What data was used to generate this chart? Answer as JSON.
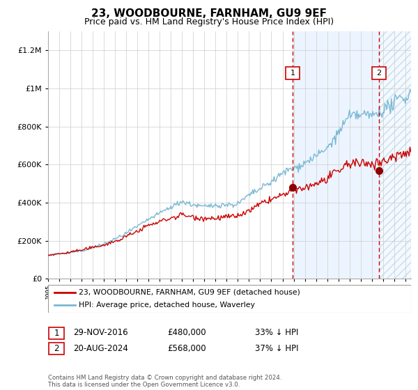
{
  "title": "23, WOODBOURNE, FARNHAM, GU9 9EF",
  "subtitle": "Price paid vs. HM Land Registry's House Price Index (HPI)",
  "legend_line1": "23, WOODBOURNE, FARNHAM, GU9 9EF (detached house)",
  "legend_line2": "HPI: Average price, detached house, Waverley",
  "annotation1": {
    "label": "1",
    "date_str": "29-NOV-2016",
    "price_str": "£480,000",
    "pct_str": "33% ↓ HPI",
    "year": 2016.92
  },
  "annotation2": {
    "label": "2",
    "date_str": "20-AUG-2024",
    "price_str": "£568,000",
    "pct_str": "37% ↓ HPI",
    "year": 2024.63
  },
  "hpi_color": "#7ab8d4",
  "price_color": "#cc0000",
  "dot_color": "#8b0000",
  "bg_shaded": "#ddeeff",
  "vline_color": "#cc0000",
  "grid_color": "#cccccc",
  "footer": "Contains HM Land Registry data © Crown copyright and database right 2024.\nThis data is licensed under the Open Government Licence v3.0.",
  "ylim_max": 1300000,
  "xstart": 1995.0,
  "xend": 2027.5,
  "annotation1_price": 480000,
  "annotation2_price": 568000
}
